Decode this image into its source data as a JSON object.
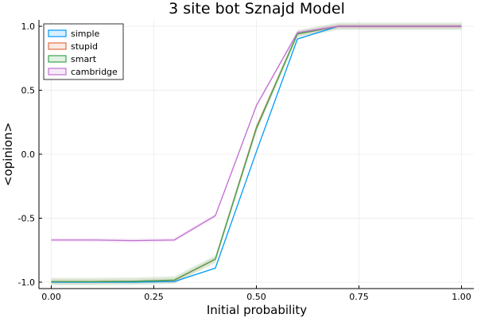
{
  "chart_data": {
    "type": "line",
    "title": "3 site bot Sznajd Model",
    "xlabel": "Initial probability",
    "ylabel": "<opinion>",
    "xlim": [
      -0.03,
      1.03
    ],
    "ylim": [
      -1.05,
      1.05
    ],
    "x_ticks": [
      0.0,
      0.25,
      0.5,
      0.75,
      1.0
    ],
    "x_tick_labels": [
      "0.00",
      "0.25",
      "0.50",
      "0.75",
      "1.00"
    ],
    "y_ticks": [
      -1.0,
      -0.5,
      0.0,
      0.5,
      1.0
    ],
    "y_tick_labels": [
      "-1.0",
      "-0.5",
      "0.0",
      "0.5",
      "1.0"
    ],
    "grid": true,
    "legend_position": "top-left",
    "x": [
      0.0,
      0.1,
      0.2,
      0.3,
      0.4,
      0.5,
      0.6,
      0.7,
      0.8,
      0.9,
      1.0
    ],
    "series": [
      {
        "name": "simple",
        "color": "#009AFA",
        "band": 0.005,
        "values": [
          -1.0,
          -1.0,
          -1.0,
          -0.995,
          -0.89,
          0.02,
          0.9,
          1.0,
          1.0,
          1.0,
          1.0
        ]
      },
      {
        "name": "stupid",
        "color": "#E26F46",
        "band": 0.02,
        "values": [
          -0.995,
          -0.995,
          -0.993,
          -0.985,
          -0.82,
          0.21,
          0.94,
          1.0,
          1.0,
          1.0,
          1.0
        ]
      },
      {
        "name": "smart",
        "color": "#3DA44D",
        "band": 0.03,
        "values": [
          -0.995,
          -0.995,
          -0.993,
          -0.983,
          -0.82,
          0.2,
          0.94,
          1.0,
          1.0,
          1.0,
          1.0
        ]
      },
      {
        "name": "cambridge",
        "color": "#C271D2",
        "band": 0.015,
        "values": [
          -0.67,
          -0.67,
          -0.675,
          -0.67,
          -0.48,
          0.38,
          0.95,
          1.0,
          1.0,
          1.0,
          1.0
        ]
      }
    ]
  }
}
